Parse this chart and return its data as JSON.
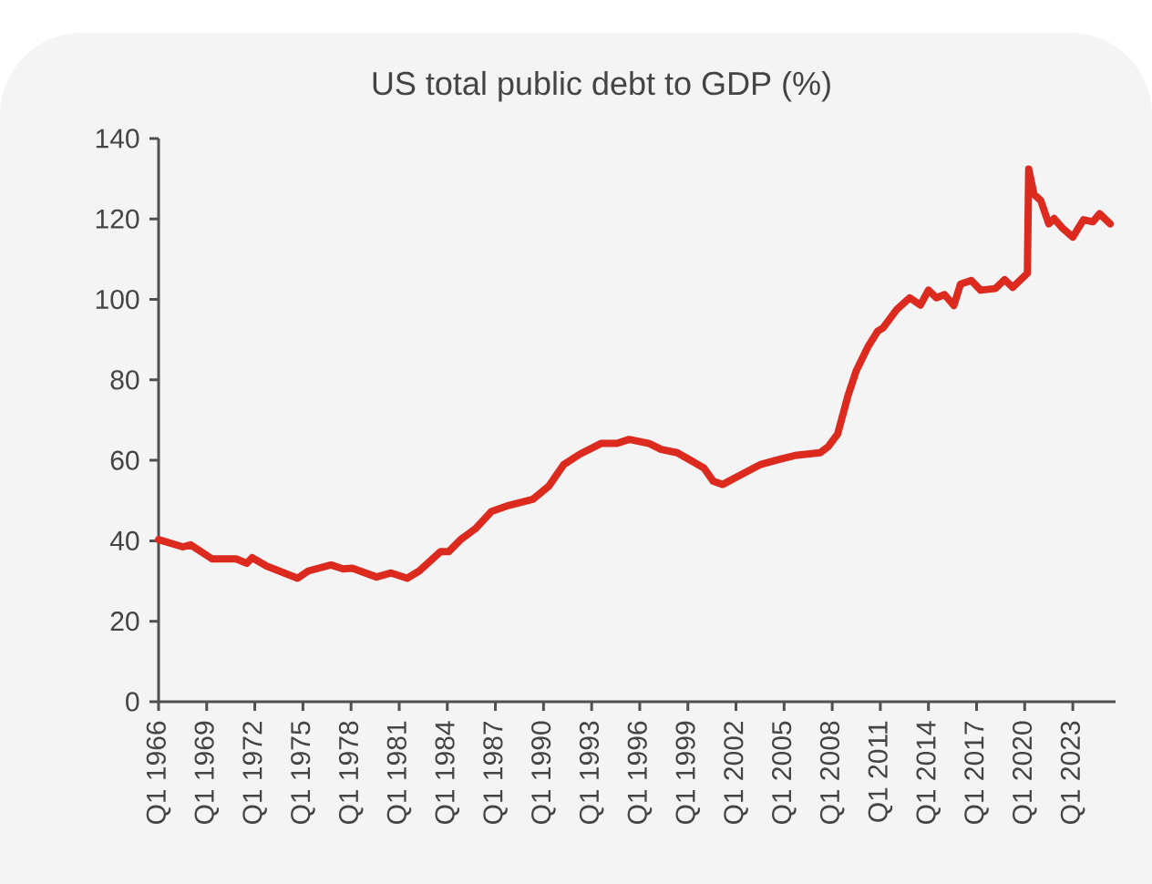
{
  "chart_data": {
    "type": "line",
    "title": "US total public debt to GDP (%)",
    "x": [
      "1966-01",
      "1967-07",
      "1968-01",
      "1969-05",
      "1970-11",
      "1971-07",
      "1971-11",
      "1972-10",
      "1974-09",
      "1975-05",
      "1976-10",
      "1977-07",
      "1978-02",
      "1979-08",
      "1980-07",
      "1981-07",
      "1982-04",
      "1983-08",
      "1984-02",
      "1984-11",
      "1985-10",
      "1986-10",
      "1987-11",
      "1989-05",
      "1990-05",
      "1991-04",
      "1992-04",
      "1993-08",
      "1994-08",
      "1995-05",
      "1996-08",
      "1997-05",
      "1998-05",
      "2000-01",
      "2000-08",
      "2001-03",
      "2002-04",
      "2003-07",
      "2004-08",
      "2005-09",
      "2007-04",
      "2007-10",
      "2008-05",
      "2009-01",
      "2009-07",
      "2010-04",
      "2010-11",
      "2011-03",
      "2012-01",
      "2012-11",
      "2013-07",
      "2014-01",
      "2014-07",
      "2015-01",
      "2015-08",
      "2016-01",
      "2016-09",
      "2017-04",
      "2018-03",
      "2018-10",
      "2019-04",
      "2020-03",
      "2020-04",
      "2020-08",
      "2021-01",
      "2021-07",
      "2021-11",
      "2022-05",
      "2023-01",
      "2023-09",
      "2024-04",
      "2024-09",
      "2025-05"
    ],
    "series": [
      {
        "color": "#dc2a1e",
        "values": [
          40.3,
          38.5,
          39,
          35.5,
          35.5,
          34.4,
          35.8,
          33.7,
          30.7,
          32.5,
          34,
          33,
          33.2,
          31,
          32,
          30.7,
          32.5,
          37.3,
          37.3,
          40.3,
          43,
          47.3,
          48.8,
          50.3,
          53.6,
          58.9,
          61.5,
          64.2,
          64.2,
          65.2,
          64.2,
          62.7,
          61.9,
          58.1,
          54.8,
          54,
          56.3,
          58.9,
          60.1,
          61.2,
          61.9,
          63.4,
          66.5,
          76.3,
          82.3,
          88.4,
          92.1,
          92.9,
          97.4,
          100.4,
          98.6,
          102.3,
          100.4,
          101.2,
          98.5,
          103.8,
          104.7,
          102.3,
          102.7,
          104.9,
          103,
          106.5,
          132.4,
          126.1,
          124.6,
          118.8,
          120.1,
          117.8,
          115.5,
          119.8,
          119.3,
          121.3,
          118.8
        ]
      }
    ],
    "xlim": [
      "1966-01",
      "2025-09"
    ],
    "xticks": [
      {
        "value": "1966-01",
        "label": "Q1 1966"
      },
      {
        "value": "1969-01",
        "label": "Q1 1969"
      },
      {
        "value": "1972-01",
        "label": "Q1 1972"
      },
      {
        "value": "1975-01",
        "label": "Q1 1975"
      },
      {
        "value": "1978-01",
        "label": "Q1 1978"
      },
      {
        "value": "1981-01",
        "label": "Q1 1981"
      },
      {
        "value": "1984-01",
        "label": "Q1 1984"
      },
      {
        "value": "1987-01",
        "label": "Q1 1987"
      },
      {
        "value": "1990-01",
        "label": "Q1 1990"
      },
      {
        "value": "1993-01",
        "label": "Q1 1993"
      },
      {
        "value": "1996-01",
        "label": "Q1 1996"
      },
      {
        "value": "1999-01",
        "label": "Q1 1999"
      },
      {
        "value": "2002-01",
        "label": "Q1 2002"
      },
      {
        "value": "2005-01",
        "label": "Q1 2005"
      },
      {
        "value": "2008-01",
        "label": "Q1 2008"
      },
      {
        "value": "2011-01",
        "label": "Q1 2011"
      },
      {
        "value": "2014-01",
        "label": "Q1 2014"
      },
      {
        "value": "2017-01",
        "label": "Q1 2017"
      },
      {
        "value": "2020-01",
        "label": "Q1 2020"
      },
      {
        "value": "2023-01",
        "label": "Q1 2023"
      }
    ],
    "ylim": [
      0,
      140
    ],
    "yticks": [
      0,
      20,
      40,
      60,
      80,
      100,
      120,
      140
    ],
    "marker": "none",
    "line_style": "solid"
  }
}
